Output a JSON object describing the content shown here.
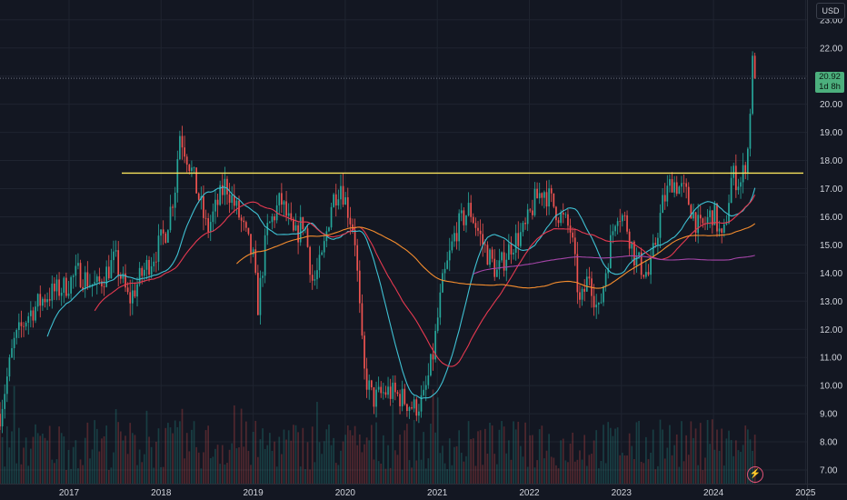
{
  "currency": "USD",
  "last_price": {
    "value": "20.92",
    "countdown": "1d 8h",
    "color": "#4caf7d"
  },
  "colors": {
    "background": "#131722",
    "up": "#26a69a",
    "down": "#ef5350",
    "resistance": "#f7e35c",
    "ma_fast": "#3fc1d3",
    "ma_mid": "#e53950",
    "ma_slow": "#f58d2e",
    "ma_long": "#a545a8"
  },
  "chart_data": {
    "type": "candlestick",
    "x_ticks": [
      "2017",
      "2018",
      "2019",
      "2020",
      "2021",
      "2022",
      "2023",
      "2024",
      "2025"
    ],
    "y_ticks": [
      "7.00",
      "8.00",
      "9.00",
      "10.00",
      "11.00",
      "12.00",
      "13.00",
      "14.00",
      "15.00",
      "16.00",
      "17.00",
      "18.00",
      "19.00",
      "20.00",
      "21.00",
      "22.00",
      "23.00"
    ],
    "ylim": [
      6.8,
      23.5
    ],
    "xlim": [
      2016.25,
      2025.0
    ],
    "grid": true,
    "resistance_level": 17.55,
    "price_path": [
      [
        2016.25,
        9.0
      ],
      [
        2016.4,
        11.5
      ],
      [
        2016.55,
        12.5
      ],
      [
        2016.75,
        13.2
      ],
      [
        2016.95,
        13.5
      ],
      [
        2017.1,
        14.0
      ],
      [
        2017.3,
        13.5
      ],
      [
        2017.5,
        14.5
      ],
      [
        2017.65,
        13.0
      ],
      [
        2017.8,
        14.0
      ],
      [
        2017.95,
        14.8
      ],
      [
        2018.05,
        15.5
      ],
      [
        2018.15,
        17.0
      ],
      [
        2018.2,
        19.0
      ],
      [
        2018.3,
        18.0
      ],
      [
        2018.4,
        16.8
      ],
      [
        2018.5,
        15.5
      ],
      [
        2018.7,
        17.2
      ],
      [
        2018.85,
        16.0
      ],
      [
        2019.0,
        14.5
      ],
      [
        2019.05,
        12.8
      ],
      [
        2019.15,
        15.5
      ],
      [
        2019.3,
        16.6
      ],
      [
        2019.45,
        15.2
      ],
      [
        2019.55,
        15.9
      ],
      [
        2019.65,
        13.6
      ],
      [
        2019.75,
        14.5
      ],
      [
        2019.85,
        16.5
      ],
      [
        2019.95,
        17.2
      ],
      [
        2020.05,
        16.0
      ],
      [
        2020.1,
        15.5
      ],
      [
        2020.2,
        10.5
      ],
      [
        2020.3,
        9.5
      ],
      [
        2020.45,
        9.8
      ],
      [
        2020.6,
        9.6
      ],
      [
        2020.75,
        9.2
      ],
      [
        2020.85,
        9.5
      ],
      [
        2020.95,
        11.0
      ],
      [
        2021.05,
        13.5
      ],
      [
        2021.2,
        15.5
      ],
      [
        2021.35,
        16.3
      ],
      [
        2021.5,
        15.0
      ],
      [
        2021.65,
        14.0
      ],
      [
        2021.8,
        15.0
      ],
      [
        2021.95,
        15.5
      ],
      [
        2022.05,
        16.5
      ],
      [
        2022.15,
        17.0
      ],
      [
        2022.3,
        16.2
      ],
      [
        2022.45,
        15.5
      ],
      [
        2022.55,
        12.8
      ],
      [
        2022.65,
        14.0
      ],
      [
        2022.75,
        12.5
      ],
      [
        2022.85,
        14.5
      ],
      [
        2022.95,
        16.3
      ],
      [
        2023.05,
        15.8
      ],
      [
        2023.15,
        14.5
      ],
      [
        2023.3,
        13.9
      ],
      [
        2023.45,
        16.5
      ],
      [
        2023.55,
        17.3
      ],
      [
        2023.7,
        16.8
      ],
      [
        2023.85,
        15.5
      ],
      [
        2024.0,
        16.2
      ],
      [
        2024.1,
        15.0
      ],
      [
        2024.2,
        17.5
      ],
      [
        2024.3,
        17.2
      ],
      [
        2024.38,
        18.5
      ],
      [
        2024.42,
        21.5
      ],
      [
        2024.45,
        20.92
      ]
    ],
    "moving_averages": {
      "fast": {
        "period": 10
      },
      "mid": {
        "period": 20
      },
      "slow": {
        "period": 50
      },
      "long": {
        "period": 100
      }
    }
  }
}
